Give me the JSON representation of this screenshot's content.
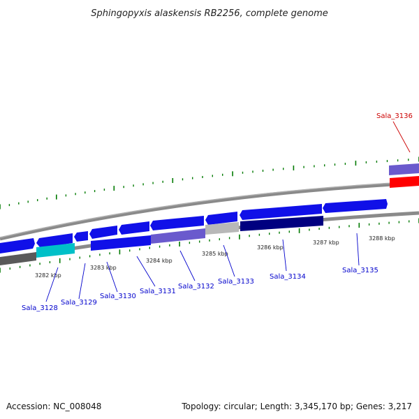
{
  "title": "Sphingopyxis alaskensis RB2256, complete genome",
  "footer": {
    "accession": "Accession: NC_008048",
    "summary": "Topology: circular; Length: 3,345,170 bp; Genes: 3,217"
  },
  "colors": {
    "backbone": "#8a8a8a",
    "tick": "#007a00",
    "gene_forward": "#1010e8",
    "gene_dark": "#000080",
    "gene_light": "#6a5acd",
    "gene_cyan": "#00c0c8",
    "gene_grey": "#b8b8b8",
    "gene_red": "#ff0000",
    "label_default": "#0000cc",
    "label_highlight": "#cc0000"
  },
  "kbp_labels": [
    "3282 kbp",
    "3283 kbp",
    "3284 kbp",
    "3285 kbp",
    "3286 kbp",
    "3287 kbp",
    "3288 kbp"
  ],
  "gene_labels": [
    {
      "text": "Sala_3128",
      "color": "blue"
    },
    {
      "text": "Sala_3129",
      "color": "blue"
    },
    {
      "text": "Sala_3130",
      "color": "blue"
    },
    {
      "text": "Sala_3131",
      "color": "blue"
    },
    {
      "text": "Sala_3132",
      "color": "blue"
    },
    {
      "text": "Sala_3133",
      "color": "blue"
    },
    {
      "text": "Sala_3134",
      "color": "blue"
    },
    {
      "text": "Sala_3135",
      "color": "blue"
    },
    {
      "text": "Sala_3136",
      "color": "red"
    }
  ]
}
